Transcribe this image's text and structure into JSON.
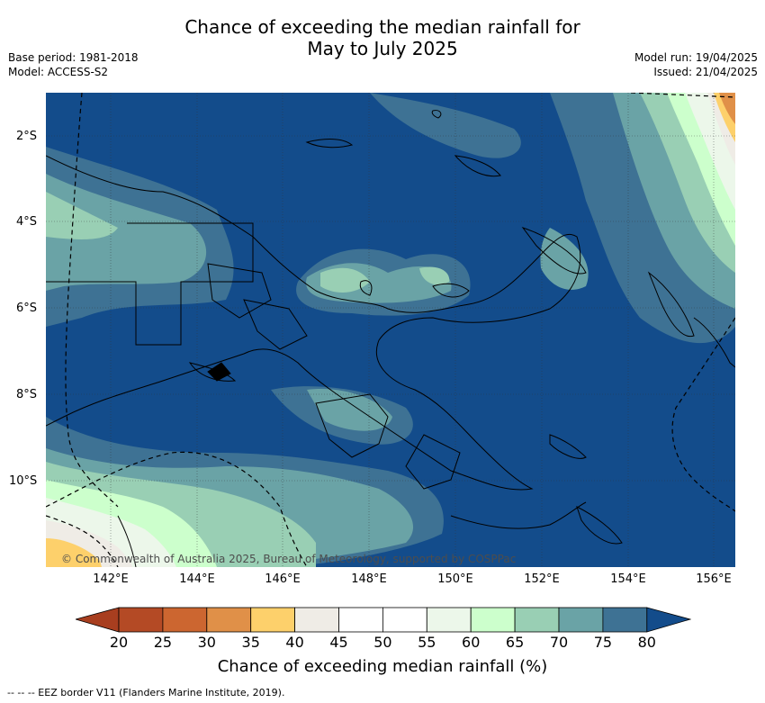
{
  "title_line1": "Chance of exceeding the median rainfall for",
  "title_line2": "May to July 2025",
  "meta_left": [
    "Base period: 1981-2018",
    "Model: ACCESS-S2"
  ],
  "meta_right": [
    "Model run: 19/04/2025",
    "Issued: 21/04/2025"
  ],
  "lat_labels": [
    "2°S",
    "4°S",
    "6°S",
    "8°S",
    "10°S"
  ],
  "lon_labels": [
    "142°E",
    "144°E",
    "146°E",
    "148°E",
    "150°E",
    "152°E",
    "154°E",
    "156°E"
  ],
  "copyright": "© Commonwealth of Australia 2025, Bureau of Meteorology, supported by COSPPac",
  "colorbar": {
    "ticks": [
      "20",
      "25",
      "30",
      "35",
      "40",
      "45",
      "50",
      "55",
      "60",
      "65",
      "70",
      "75",
      "80"
    ],
    "colors": [
      "#a83e1f",
      "#b44a25",
      "#cc6630",
      "#e09048",
      "#fdd06b",
      "#efece6",
      "#ffffff",
      "#ffffff",
      "#ecf7ea",
      "#ccffcc",
      "#99cfb4",
      "#6aa3a6",
      "#3e7294",
      "#134c8b"
    ],
    "label": "Chance of exceeding median rainfall (%)"
  },
  "footnote": "--  --  -- EEZ border V11 (Flanders Marine Institute, 2019).",
  "map_colors": {
    "c80": "#134c8b",
    "c75": "#3e7294",
    "c70": "#6aa3a6",
    "c65": "#99cfb4",
    "c60": "#ccffcc",
    "c55": "#ecf7ea",
    "c45": "#efece6",
    "c35": "#fdd06b",
    "c30": "#e09048"
  }
}
